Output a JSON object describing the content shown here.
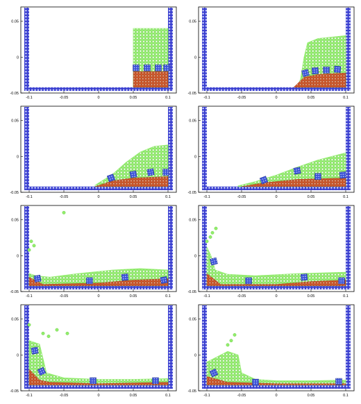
{
  "colors": {
    "wall_fill": "#3a3fd0",
    "wall_dot": "#dfe4ff",
    "water": "#92ee6c",
    "water_edge": "#6fcf4a",
    "sediment": "#d4582a",
    "sediment_edge": "#9c3a12",
    "block": "#3a52d6",
    "axis": "#000000",
    "grid": "#bdbdbd"
  },
  "chart_data": [
    {
      "type": "scatter",
      "panel": 1,
      "xlim": [
        -0.11,
        0.11
      ],
      "ylim": [
        -0.05,
        0.07
      ],
      "xticks": [
        "-0.1",
        "-0.05",
        "0",
        "0.05",
        "0.1"
      ],
      "yticks": [
        "0.05",
        "0",
        "-0.05"
      ],
      "water_profile": [
        [
          0.05,
          0.04
        ],
        [
          0.1,
          0.04
        ]
      ],
      "water_left": 0.05,
      "sediment_profile": [
        [
          0.05,
          -0.02
        ],
        [
          0.1,
          -0.02
        ]
      ],
      "sediment_left": 0.05,
      "blocks": [
        [
          0.054,
          -0.015,
          0
        ],
        [
          0.07,
          -0.015,
          0
        ],
        [
          0.086,
          -0.015,
          0
        ],
        [
          0.098,
          -0.015,
          0
        ]
      ]
    },
    {
      "type": "scatter",
      "panel": 2,
      "xlim": [
        -0.11,
        0.11
      ],
      "ylim": [
        -0.05,
        0.07
      ],
      "xticks": [
        "-0.1",
        "-0.05",
        "0",
        "0.05",
        "0.1"
      ],
      "yticks": [
        "0.05",
        "0",
        "-0.05"
      ],
      "water_profile": [
        [
          0.035,
          -0.03
        ],
        [
          0.04,
          0.0
        ],
        [
          0.045,
          0.02
        ],
        [
          0.06,
          0.026
        ],
        [
          0.08,
          0.028
        ],
        [
          0.1,
          0.03
        ]
      ],
      "water_left": 0.03,
      "sediment_profile": [
        [
          0.025,
          -0.042
        ],
        [
          0.04,
          -0.028
        ],
        [
          0.06,
          -0.024
        ],
        [
          0.1,
          -0.022
        ]
      ],
      "sediment_left": 0.025,
      "blocks": [
        [
          0.042,
          -0.022,
          15
        ],
        [
          0.056,
          -0.019,
          5
        ],
        [
          0.072,
          -0.018,
          0
        ],
        [
          0.088,
          -0.017,
          -5
        ]
      ]
    },
    {
      "type": "scatter",
      "panel": 3,
      "xlim": [
        -0.11,
        0.11
      ],
      "ylim": [
        -0.05,
        0.07
      ],
      "xticks": [
        "-0.1",
        "-0.05",
        "0",
        "0.05",
        "0.1"
      ],
      "yticks": [
        "0.05",
        "0",
        "-0.05"
      ],
      "water_profile": [
        [
          -0.005,
          -0.04
        ],
        [
          0.02,
          -0.025
        ],
        [
          0.04,
          -0.008
        ],
        [
          0.06,
          0.006
        ],
        [
          0.08,
          0.014
        ],
        [
          0.1,
          0.016
        ]
      ],
      "water_left": -0.005,
      "sediment_profile": [
        [
          -0.005,
          -0.042
        ],
        [
          0.02,
          -0.034
        ],
        [
          0.05,
          -0.03
        ],
        [
          0.1,
          -0.028
        ]
      ],
      "sediment_left": -0.005,
      "blocks": [
        [
          0.018,
          -0.03,
          20
        ],
        [
          0.05,
          -0.025,
          10
        ],
        [
          0.075,
          -0.022,
          10
        ],
        [
          0.097,
          -0.022,
          0
        ]
      ]
    },
    {
      "type": "scatter",
      "panel": 4,
      "xlim": [
        -0.11,
        0.11
      ],
      "ylim": [
        -0.05,
        0.07
      ],
      "xticks": [
        "-0.1",
        "-0.05",
        "0",
        "0.05",
        "0.1"
      ],
      "yticks": [
        "0.05",
        "0",
        "-0.05"
      ],
      "water_profile": [
        [
          -0.055,
          -0.041
        ],
        [
          -0.03,
          -0.035
        ],
        [
          0.0,
          -0.026
        ],
        [
          0.03,
          -0.015
        ],
        [
          0.06,
          -0.005
        ],
        [
          0.1,
          0.005
        ]
      ],
      "water_left": -0.055,
      "sediment_profile": [
        [
          -0.05,
          -0.042
        ],
        [
          -0.02,
          -0.037
        ],
        [
          0.03,
          -0.032
        ],
        [
          0.1,
          -0.03
        ]
      ],
      "sediment_left": -0.05,
      "blocks": [
        [
          -0.018,
          -0.033,
          20
        ],
        [
          0.03,
          -0.02,
          10
        ],
        [
          0.06,
          -0.028,
          0
        ],
        [
          0.096,
          -0.026,
          5
        ]
      ]
    },
    {
      "type": "scatter",
      "panel": 5,
      "xlim": [
        -0.11,
        0.11
      ],
      "ylim": [
        -0.05,
        0.07
      ],
      "xticks": [
        "-0.1",
        "-0.05",
        "0",
        "0.05",
        "0.1"
      ],
      "yticks": [
        "0.05",
        "0",
        "-0.05"
      ],
      "water_profile": [
        [
          -0.1,
          -0.025
        ],
        [
          -0.09,
          -0.028
        ],
        [
          -0.07,
          -0.03
        ],
        [
          -0.03,
          -0.025
        ],
        [
          0.02,
          -0.02
        ],
        [
          0.06,
          -0.018
        ],
        [
          0.1,
          -0.02
        ]
      ],
      "water_left": -0.1,
      "sediment_profile": [
        [
          -0.1,
          -0.03
        ],
        [
          -0.08,
          -0.04
        ],
        [
          0.0,
          -0.038
        ],
        [
          0.05,
          -0.034
        ],
        [
          0.1,
          -0.032
        ]
      ],
      "sediment_left": -0.1,
      "blocks": [
        [
          -0.088,
          -0.032,
          10
        ],
        [
          -0.013,
          -0.035,
          0
        ],
        [
          0.038,
          -0.03,
          5
        ],
        [
          0.094,
          -0.034,
          10
        ]
      ],
      "splash": [
        [
          -0.097,
          0.02
        ],
        [
          -0.093,
          0.014
        ],
        [
          -0.1,
          0.008
        ],
        [
          -0.05,
          0.06
        ]
      ]
    },
    {
      "type": "scatter",
      "panel": 6,
      "xlim": [
        -0.11,
        0.11
      ],
      "ylim": [
        -0.05,
        0.07
      ],
      "xticks": [
        "-0.1",
        "-0.05",
        "0",
        "0.05",
        "0.1"
      ],
      "yticks": [
        "0.05",
        "0",
        "-0.05"
      ],
      "water_profile": [
        [
          -0.1,
          0.012
        ],
        [
          -0.094,
          0.0
        ],
        [
          -0.088,
          -0.02
        ],
        [
          -0.07,
          -0.026
        ],
        [
          -0.03,
          -0.028
        ],
        [
          0.03,
          -0.025
        ],
        [
          0.1,
          -0.023
        ]
      ],
      "water_left": -0.1,
      "sediment_profile": [
        [
          -0.1,
          -0.025
        ],
        [
          -0.08,
          -0.04
        ],
        [
          0.0,
          -0.04
        ],
        [
          0.05,
          -0.036
        ],
        [
          0.1,
          -0.034
        ]
      ],
      "sediment_left": -0.1,
      "blocks": [
        [
          -0.09,
          -0.008,
          15
        ],
        [
          -0.04,
          -0.035,
          0
        ],
        [
          0.04,
          -0.03,
          5
        ],
        [
          0.094,
          -0.035,
          0
        ]
      ],
      "splash": [
        [
          -0.092,
          0.032
        ],
        [
          -0.095,
          0.026
        ],
        [
          -0.087,
          0.038
        ],
        [
          -0.1,
          0.02
        ]
      ]
    },
    {
      "type": "scatter",
      "panel": 7,
      "xlim": [
        -0.11,
        0.11
      ],
      "ylim": [
        -0.05,
        0.07
      ],
      "xticks": [
        "-0.1",
        "-0.05",
        "0",
        "0.05",
        "0.1"
      ],
      "yticks": [
        "0.05",
        "0",
        "-0.05"
      ],
      "water_profile": [
        [
          -0.1,
          0.02
        ],
        [
          -0.085,
          0.015
        ],
        [
          -0.075,
          -0.025
        ],
        [
          -0.05,
          -0.032
        ],
        [
          0.0,
          -0.034
        ],
        [
          0.05,
          -0.034
        ],
        [
          0.1,
          -0.033
        ]
      ],
      "water_left": -0.1,
      "sediment_profile": [
        [
          -0.1,
          -0.02
        ],
        [
          -0.085,
          -0.035
        ],
        [
          -0.07,
          -0.038
        ],
        [
          0.0,
          -0.04
        ],
        [
          0.1,
          -0.038
        ]
      ],
      "sediment_left": -0.1,
      "blocks": [
        [
          -0.092,
          0.006,
          10
        ],
        [
          -0.082,
          -0.023,
          25
        ],
        [
          -0.008,
          -0.036,
          0
        ],
        [
          0.082,
          -0.036,
          0
        ]
      ],
      "splash": [
        [
          -0.08,
          0.03
        ],
        [
          -0.072,
          0.026
        ],
        [
          -0.06,
          0.035
        ],
        [
          -0.045,
          0.03
        ],
        [
          -0.1,
          0.042
        ]
      ]
    },
    {
      "type": "scatter",
      "panel": 8,
      "xlim": [
        -0.11,
        0.11
      ],
      "ylim": [
        -0.05,
        0.07
      ],
      "xticks": [
        "-0.1",
        "-0.05",
        "0",
        "0.05",
        "0.1"
      ],
      "yticks": [
        "0.05",
        "0",
        "-0.05"
      ],
      "water_profile": [
        [
          -0.1,
          -0.01
        ],
        [
          -0.09,
          -0.005
        ],
        [
          -0.07,
          0.005
        ],
        [
          -0.055,
          0.0
        ],
        [
          -0.05,
          -0.025
        ],
        [
          -0.03,
          -0.034
        ],
        [
          0.0,
          -0.036
        ],
        [
          0.05,
          -0.036
        ],
        [
          0.1,
          -0.035
        ]
      ],
      "water_left": -0.1,
      "sediment_profile": [
        [
          -0.1,
          -0.03
        ],
        [
          -0.07,
          -0.038
        ],
        [
          0.0,
          -0.04
        ],
        [
          0.1,
          -0.04
        ]
      ],
      "sediment_left": -0.1,
      "blocks": [
        [
          -0.09,
          -0.025,
          25
        ],
        [
          -0.03,
          -0.038,
          0
        ],
        [
          0.09,
          -0.037,
          0
        ]
      ],
      "splash": [
        [
          -0.065,
          0.02
        ],
        [
          -0.06,
          0.028
        ],
        [
          -0.07,
          0.014
        ]
      ]
    }
  ]
}
